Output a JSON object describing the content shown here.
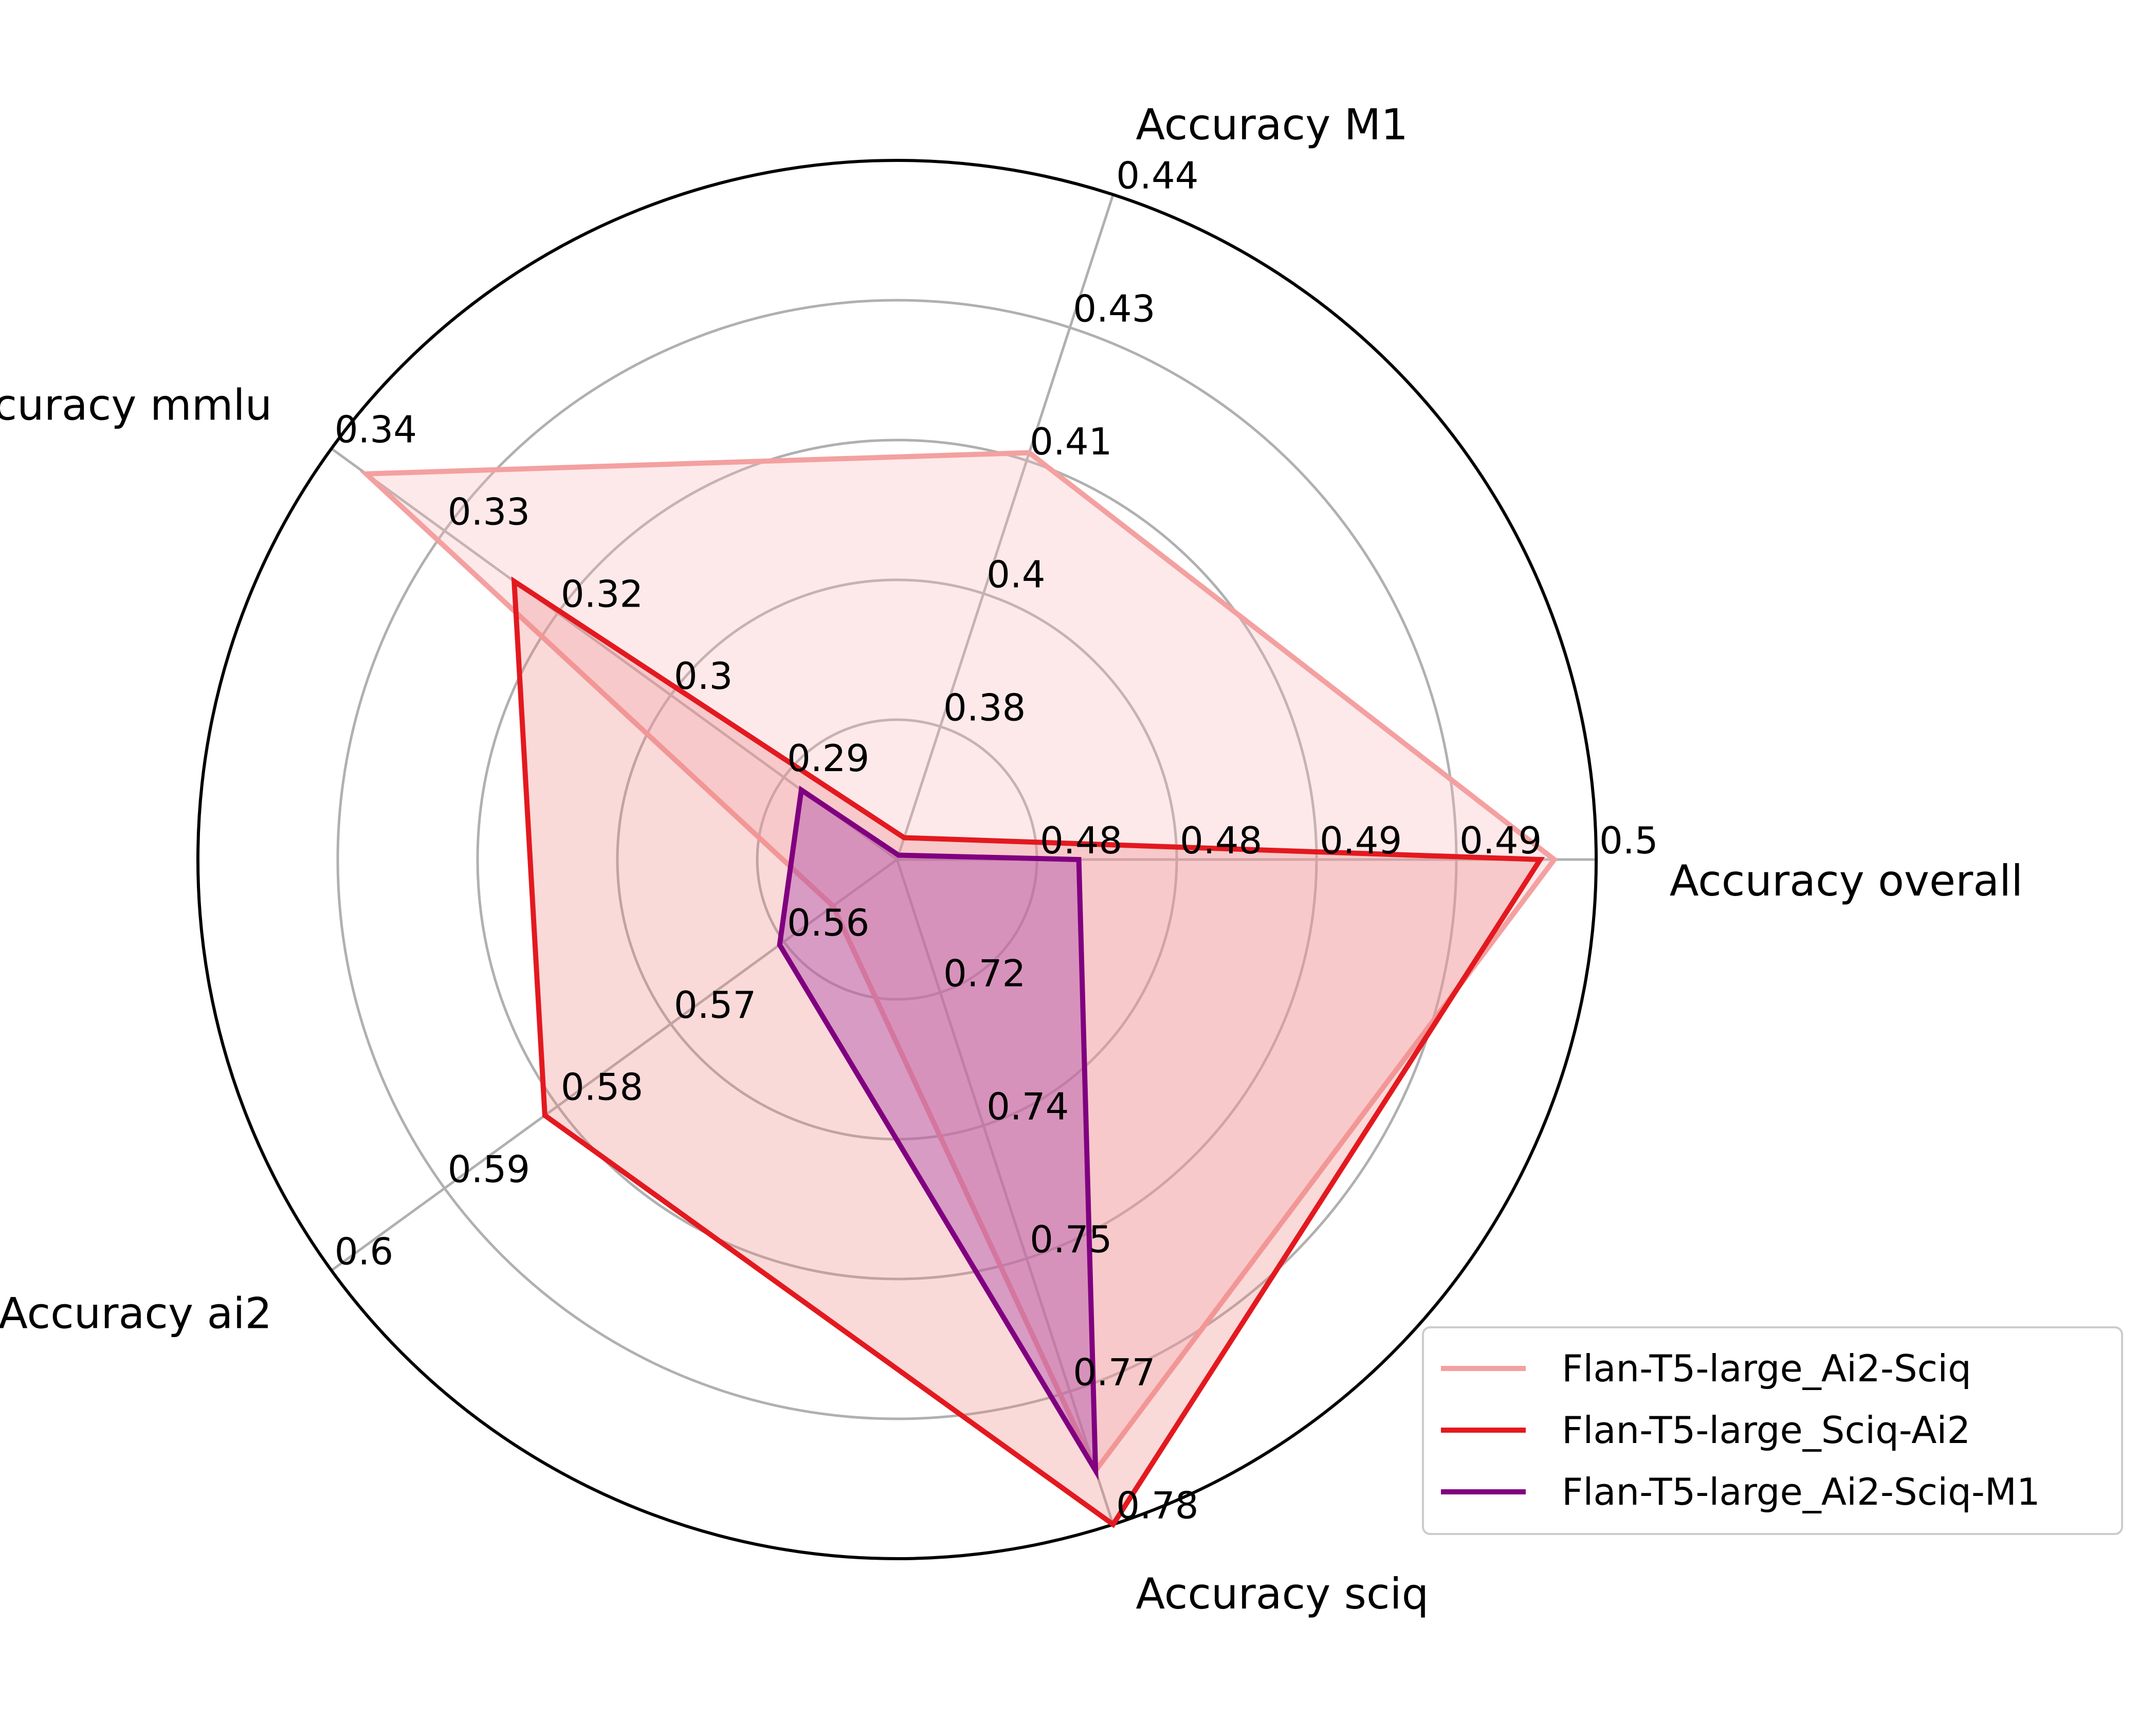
{
  "chart_data": {
    "type": "radar",
    "axes": [
      "Accuracy overall",
      "Accuracy M1",
      "Accuracy mmlu",
      "Accuracy ai2",
      "Accuracy sciq"
    ],
    "axis_ticks": [
      [
        "0.48",
        "0.48",
        "0.49",
        "0.49",
        "0.5"
      ],
      [
        "0.38",
        "0.4",
        "0.41",
        "0.43",
        "0.44"
      ],
      [
        "0.29",
        "0.3",
        "0.32",
        "0.33",
        "0.34"
      ],
      [
        "0.56",
        "0.57",
        "0.58",
        "0.59",
        "0.6"
      ],
      [
        "0.72",
        "0.74",
        "0.75",
        "0.77",
        "0.78"
      ]
    ],
    "axis_ranges": [
      [
        0.472,
        0.497
      ],
      [
        0.364,
        0.44
      ],
      [
        0.2765,
        0.3415
      ],
      [
        0.5475,
        0.6005
      ],
      [
        0.7075,
        0.7815
      ]
    ],
    "series": [
      {
        "name": "Flan-T5-large_Ai2-Sciq",
        "color": "#f4a0a0",
        "fill": "#f7b5b8",
        "fill_opacity": 0.3,
        "values": [
          0.4955,
          0.4105,
          0.3375,
          0.5535,
          0.7755
        ]
      },
      {
        "name": "Flan-T5-large_Sciq-Ai2",
        "color": "#e3191f",
        "fill": "#f08080",
        "fill_opacity": 0.3,
        "values": [
          0.495,
          0.3665,
          0.3205,
          0.5805,
          0.7815
        ]
      },
      {
        "name": "Flan-T5-large_Ai2-Sciq-M1",
        "color": "#800080",
        "fill": "#b04fa8",
        "fill_opacity": 0.45,
        "values": [
          0.4785,
          0.3645,
          0.2875,
          0.5585,
          0.7755
        ]
      }
    ],
    "grid": true,
    "legend": "lower-right"
  }
}
